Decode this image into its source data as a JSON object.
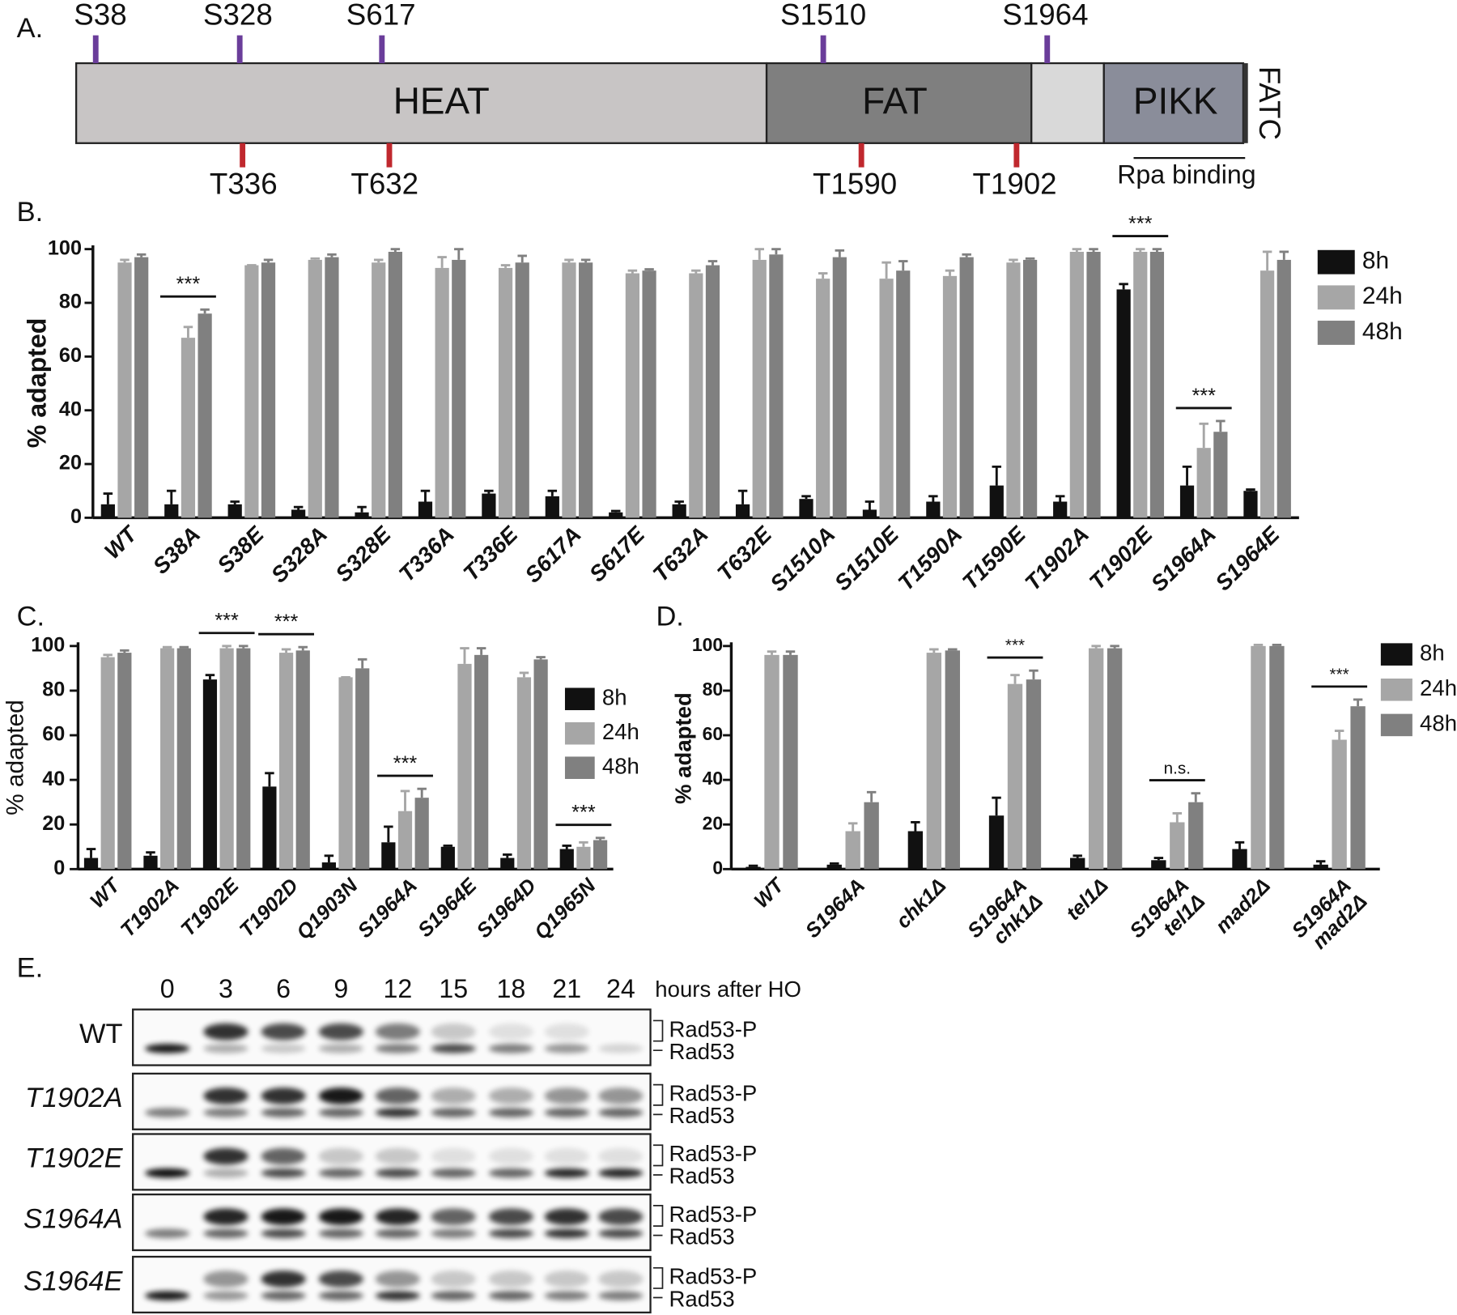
{
  "panel_labels": [
    "A.",
    "B.",
    "C.",
    "D.",
    "E."
  ],
  "domain_map": {
    "domains": [
      "HEAT",
      "FAT",
      "PIKK",
      "FATC"
    ],
    "sites_above": [
      "S38",
      "S328",
      "S617",
      "S1510",
      "S1964"
    ],
    "sites_below": [
      "T336",
      "T632",
      "T1590",
      "T1902"
    ],
    "region_label": "Rpa binding"
  },
  "chart_data": [
    {
      "type": "bar",
      "y_label": "% adapted",
      "categories": [
        "WT",
        "S38A",
        "S38E",
        "S328A",
        "S328E",
        "T336A",
        "T336E",
        "S617A",
        "S617E",
        "T632A",
        "T632E",
        "S1510A",
        "S1510E",
        "T1590A",
        "T1590E",
        "T1902A",
        "T1902E",
        "S1964A",
        "S1964E"
      ],
      "series": [
        {
          "name": "8h",
          "color": "#111111",
          "values": [
            5,
            5,
            5,
            3,
            2,
            6,
            9,
            8,
            2,
            5,
            5,
            7,
            3,
            6,
            12,
            6,
            85,
            12,
            10
          ],
          "errors": [
            4,
            5,
            1,
            1,
            2,
            4,
            1,
            2,
            0.5,
            1,
            5,
            1,
            3,
            2,
            7,
            2,
            2,
            7,
            0.5
          ]
        },
        {
          "name": "24h",
          "color": "#a6a6a6",
          "values": [
            95,
            67,
            94,
            96,
            95,
            93,
            93,
            95,
            91,
            91,
            96,
            89,
            89,
            90,
            95,
            99,
            99,
            26,
            92
          ],
          "errors": [
            1,
            4,
            0,
            0.5,
            1,
            4,
            1,
            1,
            1,
            1,
            4,
            2,
            6,
            2,
            1,
            1,
            1,
            9,
            7
          ]
        },
        {
          "name": "48h",
          "color": "#808080",
          "values": [
            97,
            76,
            95,
            97,
            99,
            96,
            95,
            95,
            92,
            94,
            98,
            97,
            92,
            97,
            96,
            99,
            99,
            32,
            96
          ],
          "errors": [
            1,
            1.5,
            1,
            1,
            1,
            4,
            2.5,
            1,
            0.5,
            1.5,
            2,
            2.5,
            3.5,
            1,
            0.5,
            1,
            1,
            4,
            3
          ]
        }
      ],
      "ylim": [
        0,
        100
      ],
      "yticks": [
        0,
        20,
        40,
        60,
        80,
        100
      ],
      "grid": false,
      "legend": "right",
      "annotations": [
        {
          "text": "***",
          "category": "S38A"
        },
        {
          "text": "***",
          "category": "T1902E"
        },
        {
          "text": "***",
          "category": "S1964A"
        }
      ]
    },
    {
      "type": "bar",
      "y_label": "% adapted",
      "categories": [
        "WT",
        "T1902A",
        "T1902E",
        "T1902D",
        "Q1903N",
        "S1964A",
        "S1964E",
        "S1964D",
        "Q1965N"
      ],
      "series": [
        {
          "name": "8h",
          "color": "#111111",
          "values": [
            5,
            6,
            85,
            37,
            3,
            12,
            10,
            5,
            9
          ],
          "errors": [
            4,
            1.5,
            2,
            6,
            3,
            7,
            0.5,
            1.5,
            1.5
          ]
        },
        {
          "name": "24h",
          "color": "#a6a6a6",
          "values": [
            95,
            99,
            99,
            97,
            86,
            26,
            92,
            86,
            10
          ],
          "errors": [
            1,
            0.5,
            1,
            1.5,
            0,
            9,
            7,
            2,
            2
          ]
        },
        {
          "name": "48h",
          "color": "#808080",
          "values": [
            97,
            99,
            99,
            98,
            90,
            32,
            96,
            94,
            13
          ],
          "errors": [
            1,
            0.5,
            1,
            1.5,
            4,
            4,
            3,
            1,
            1
          ]
        }
      ],
      "ylim": [
        0,
        100
      ],
      "yticks": [
        0,
        20,
        40,
        60,
        80,
        100
      ],
      "grid": false,
      "legend": "right",
      "annotations": [
        {
          "text": "***",
          "category": "T1902E"
        },
        {
          "text": "***",
          "category": "T1902D"
        },
        {
          "text": "***",
          "category": "S1964A"
        },
        {
          "text": "***",
          "category": "Q1965N"
        }
      ]
    },
    {
      "type": "bar",
      "y_label": "% adapted",
      "categories": [
        [
          "WT"
        ],
        [
          "S1964A"
        ],
        [
          "chk1Δ"
        ],
        [
          "S1964A",
          "chk1Δ"
        ],
        [
          "tel1Δ"
        ],
        [
          "S1964A",
          "tel1Δ"
        ],
        [
          "mad2Δ"
        ],
        [
          "S1964A",
          "mad2Δ"
        ]
      ],
      "series": [
        {
          "name": "8h",
          "color": "#111111",
          "values": [
            1,
            2,
            17,
            24,
            5,
            4,
            9,
            2
          ],
          "errors": [
            0.5,
            0.5,
            4,
            8,
            1,
            1,
            3,
            1.5
          ]
        },
        {
          "name": "24h",
          "color": "#a6a6a6",
          "values": [
            96,
            17,
            97,
            83,
            99,
            21,
            100,
            58
          ],
          "errors": [
            1.5,
            3.5,
            1.5,
            4,
            1,
            4,
            0.5,
            4
          ]
        },
        {
          "name": "48h",
          "color": "#808080",
          "values": [
            96,
            30,
            98,
            85,
            99,
            30,
            100,
            73
          ],
          "errors": [
            1.5,
            4.5,
            0.5,
            4,
            1,
            4,
            0.5,
            3
          ]
        }
      ],
      "ylim": [
        0,
        100
      ],
      "yticks": [
        0,
        20,
        40,
        60,
        80,
        100
      ],
      "grid": false,
      "legend": "right",
      "annotations": [
        {
          "text": "***",
          "category": [
            "S1964A",
            "chk1Δ"
          ]
        },
        {
          "text": "n.s.",
          "category": [
            "S1964A",
            "tel1Δ"
          ]
        },
        {
          "text": "***",
          "category": [
            "S1964A",
            "mad2Δ"
          ]
        }
      ]
    }
  ],
  "blot": {
    "lanes": [
      0,
      3,
      6,
      9,
      12,
      15,
      18,
      21,
      24
    ],
    "lane_axis_label": "hours after HO",
    "rows": [
      "WT",
      "T1902A",
      "T1902E",
      "S1964A",
      "S1964E"
    ],
    "band_labels": [
      "Rad53-P",
      "Rad53"
    ]
  }
}
